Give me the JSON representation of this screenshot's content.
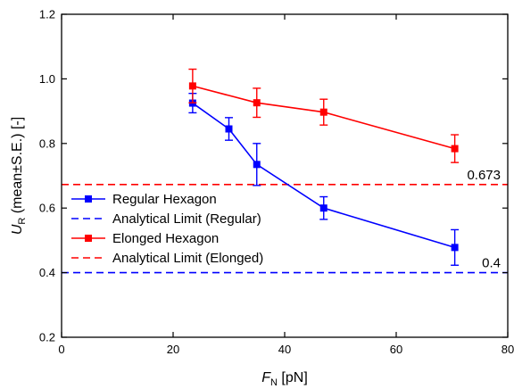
{
  "chart_data": {
    "type": "line",
    "xlabel": {
      "main": "F",
      "sub": "N",
      "unit": " [pN]"
    },
    "ylabel": {
      "main": "U",
      "sub": "R",
      "unit": " (mean±S.E.) [-]"
    },
    "xlim": [
      0,
      80
    ],
    "ylim": [
      0.2,
      1.2
    ],
    "x_ticks": [
      "0",
      "20",
      "40",
      "60",
      "80"
    ],
    "y_ticks": [
      "0.2",
      "0.4",
      "0.6",
      "0.8",
      "1.0",
      "1.2"
    ],
    "grid": false,
    "legend_position": "left",
    "series": [
      {
        "name": "Regular Hexagon",
        "color": "#0000ff",
        "marker": "square",
        "x": [
          23.5,
          30,
          35,
          47,
          70.5
        ],
        "y": [
          0.925,
          0.845,
          0.735,
          0.6,
          0.478
        ],
        "err": [
          0.03,
          0.035,
          0.065,
          0.035,
          0.055
        ]
      },
      {
        "name": "Elonged Hexagon",
        "color": "#ff0000",
        "marker": "square",
        "x": [
          23.5,
          35,
          47,
          70.5
        ],
        "y": [
          0.978,
          0.926,
          0.897,
          0.784
        ],
        "err": [
          0.052,
          0.045,
          0.04,
          0.043
        ]
      }
    ],
    "reference_lines": [
      {
        "name": "Analytical Limit (Regular)",
        "y": 0.4,
        "color": "#0000ff",
        "style": "dashed",
        "label": "0.4"
      },
      {
        "name": "Analytical Limit (Elonged)",
        "y": 0.673,
        "color": "#ff0000",
        "style": "dashed",
        "label": "0.673"
      }
    ],
    "legend": [
      {
        "label": "Regular Hexagon",
        "color": "#0000ff",
        "style": "line-marker"
      },
      {
        "label": "Analytical Limit (Regular)",
        "color": "#0000ff",
        "style": "dashed"
      },
      {
        "label": "Elonged Hexagon",
        "color": "#ff0000",
        "style": "line-marker"
      },
      {
        "label": "Analytical Limit (Elonged)",
        "color": "#ff0000",
        "style": "dashed"
      }
    ]
  }
}
